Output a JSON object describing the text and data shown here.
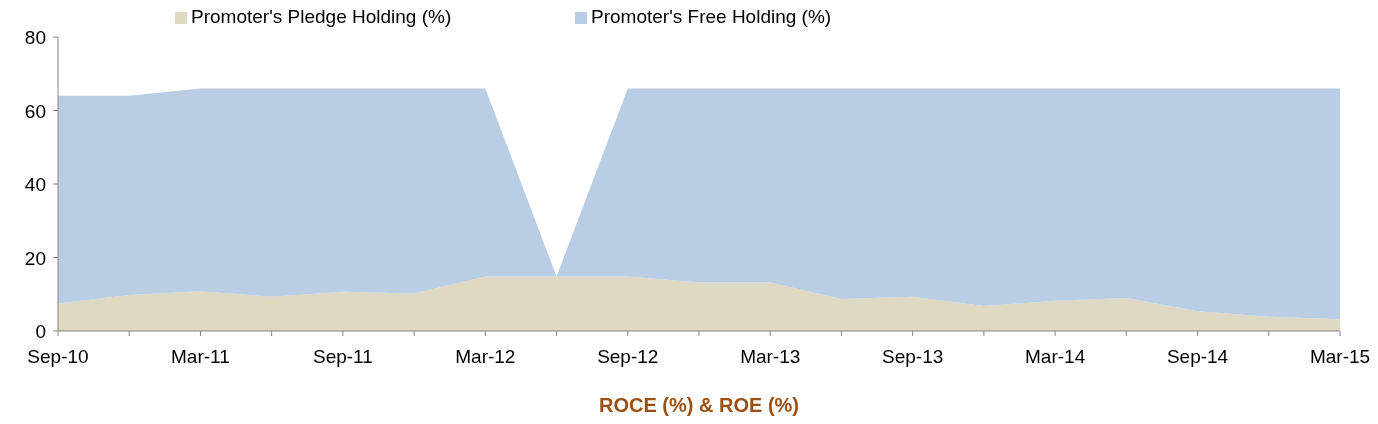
{
  "chart_data": {
    "type": "area",
    "stacked": true,
    "xlabel": "ROCE (%) & ROE (%)",
    "categories": [
      "Sep-10",
      null,
      "Mar-11",
      null,
      "Sep-11",
      null,
      "Mar-12",
      null,
      "Sep-12",
      null,
      "Mar-13",
      null,
      "Sep-13",
      null,
      "Mar-14",
      null,
      "Sep-14",
      null,
      "Mar-15"
    ],
    "series": [
      {
        "name": "Promoter's Pledge Holding (%)",
        "color": "#ddd9c3",
        "values": [
          7.5,
          9.8,
          10.8,
          9.3,
          10.7,
          10.2,
          14.8,
          14.8,
          14.8,
          13.2,
          13.2,
          8.7,
          9.3,
          6.8,
          8.2,
          9.0,
          5.4,
          3.9,
          3.2
        ]
      },
      {
        "name": "Promoter's Free Holding (%)",
        "color": "#b9cde5",
        "values": [
          56.5,
          54.2,
          55.2,
          56.7,
          55.3,
          55.8,
          51.2,
          0,
          51.2,
          52.8,
          52.8,
          57.3,
          56.7,
          59.2,
          57.8,
          57.0,
          60.6,
          62.1,
          62.8
        ]
      }
    ],
    "ylim": [
      0,
      80
    ],
    "yticks": [
      0,
      20,
      40,
      60,
      80
    ],
    "legend": "top"
  }
}
